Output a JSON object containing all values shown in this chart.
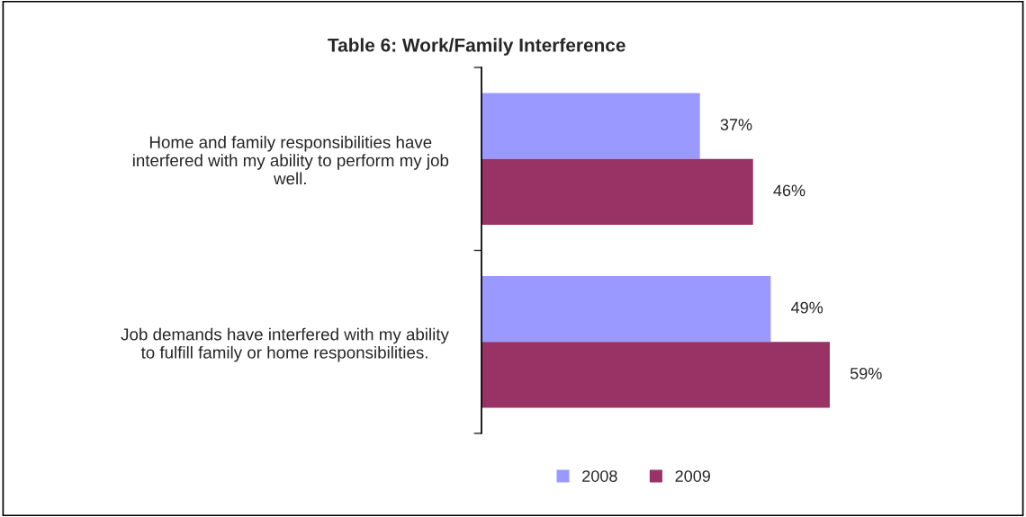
{
  "chart_data": {
    "type": "bar",
    "orientation": "horizontal",
    "title": "Table 6: Work/Family Interference",
    "categories": [
      "Home and family responsibilities have\ninterfered with my ability to perform my job\nwell.",
      "Job demands have interfered with my ability\nto fulfill family or home responsibilities."
    ],
    "series": [
      {
        "name": "2008",
        "color": "#9999ff",
        "values": [
          37,
          49
        ],
        "value_labels": [
          "37%",
          "49%"
        ]
      },
      {
        "name": "2009",
        "color": "#993366",
        "values": [
          46,
          59
        ],
        "value_labels": [
          "46%",
          "59%"
        ]
      }
    ],
    "legend": "bottom",
    "grid": false
  }
}
